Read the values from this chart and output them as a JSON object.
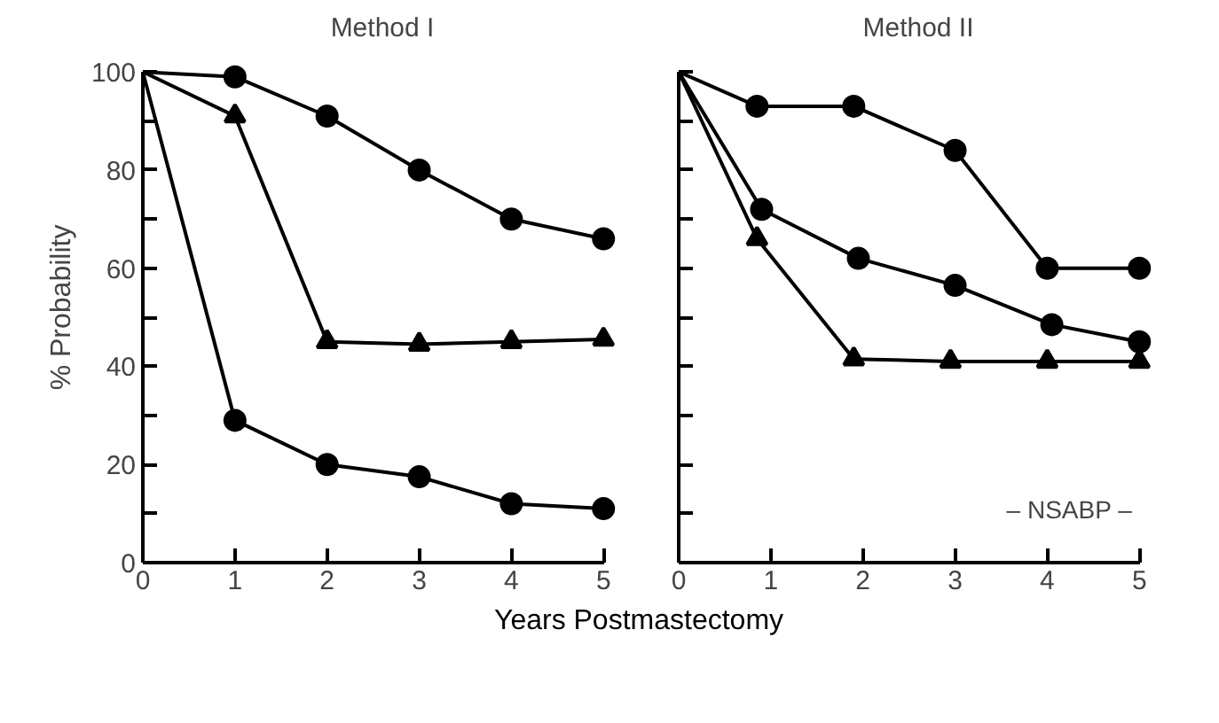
{
  "chart_data": [
    {
      "type": "line",
      "title": "Method I",
      "xlabel": "Years Postmastectomy",
      "ylabel": "% Probability",
      "xlim": [
        0,
        5
      ],
      "ylim": [
        0,
        100
      ],
      "xticks": [
        0,
        1,
        2,
        3,
        4,
        5
      ],
      "yticks": [
        0,
        {
          "value": 10,
          "label": null
        },
        20,
        {
          "value": 30,
          "label": null
        },
        40,
        {
          "value": 50,
          "label": null
        },
        60,
        {
          "value": 70,
          "label": null
        },
        80,
        {
          "value": 90,
          "label": null
        },
        100
      ],
      "grid": false,
      "line_style": "solid",
      "series": [
        {
          "color": "#000000",
          "marker": "circle",
          "x": [
            0,
            1,
            2,
            3,
            4,
            5
          ],
          "values": [
            100,
            99,
            91,
            80,
            70,
            66
          ]
        },
        {
          "color": "#000000",
          "marker": "triangle",
          "x": [
            0,
            1,
            2,
            3,
            4,
            5
          ],
          "values": [
            100,
            91,
            45,
            44.5,
            45,
            45.5
          ]
        },
        {
          "color": "#000000",
          "marker": "circle",
          "x": [
            0,
            1,
            2,
            3,
            4,
            5
          ],
          "values": [
            100,
            29,
            20,
            17.5,
            12,
            11
          ]
        }
      ]
    },
    {
      "type": "line",
      "title": "Method II",
      "xlim": [
        0,
        5
      ],
      "ylim": [
        0,
        100
      ],
      "xticks": [
        0,
        1,
        2,
        3,
        4,
        5
      ],
      "yticks": [
        {
          "value": 0,
          "label": null
        },
        {
          "value": 10,
          "label": null
        },
        {
          "value": 20,
          "label": null
        },
        {
          "value": 30,
          "label": null
        },
        {
          "value": 40,
          "label": null
        },
        {
          "value": 50,
          "label": null
        },
        {
          "value": 60,
          "label": null
        },
        {
          "value": 70,
          "label": null
        },
        {
          "value": 80,
          "label": null
        },
        {
          "value": 90,
          "label": null
        },
        {
          "value": 100,
          "label": null
        }
      ],
      "tick_labels": "x",
      "grid": false,
      "line_style": "solid",
      "annotations": [
        "– NSABP –"
      ],
      "series": [
        {
          "color": "#000000",
          "marker": "circle",
          "x": [
            0,
            0.85,
            1.9,
            3,
            4,
            5
          ],
          "values": [
            100,
            93,
            93,
            84,
            60,
            60
          ]
        },
        {
          "color": "#000000",
          "marker": "circle",
          "x": [
            0,
            0.9,
            1.95,
            3,
            4.05,
            5
          ],
          "values": [
            100,
            72,
            62,
            56.5,
            48.5,
            45
          ]
        },
        {
          "color": "#000000",
          "marker": "triangle",
          "x": [
            0,
            0.85,
            1.9,
            2.95,
            4,
            5
          ],
          "values": [
            100,
            66,
            41.5,
            41,
            41,
            41
          ]
        }
      ]
    }
  ]
}
